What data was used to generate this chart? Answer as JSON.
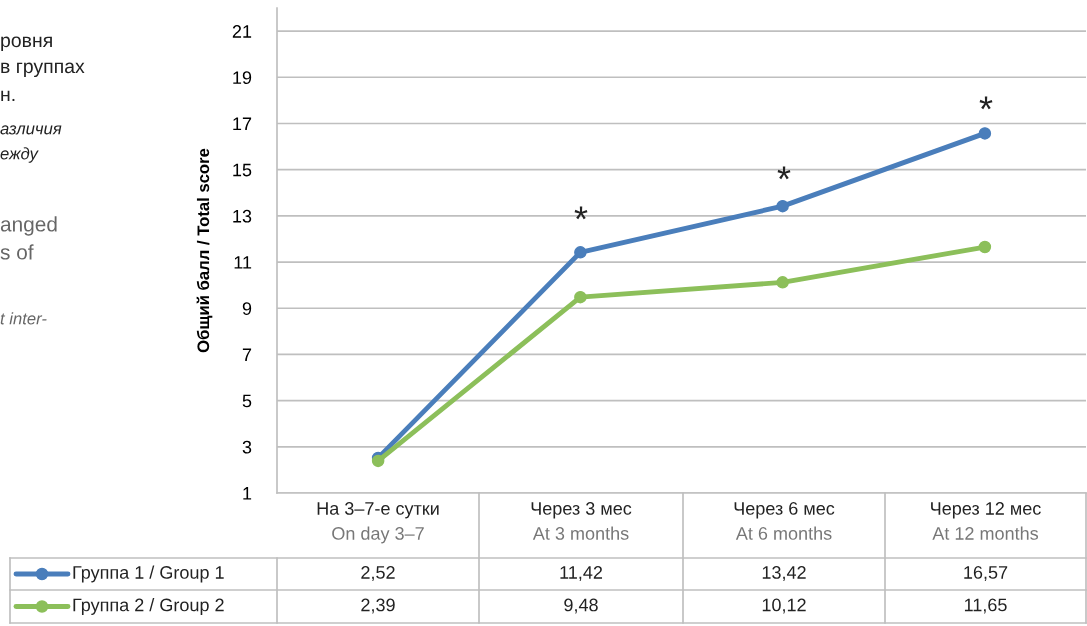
{
  "chart_data": {
    "type": "line",
    "ylabel": "Общий балл / Total score",
    "categories": [
      "На 3–7-е сутки\nOn day 3–7",
      "Через 3 мес\nAt 3 months",
      "Через 6 мес\nAt 6 months",
      "Через 12 мес\nAt 12 months"
    ],
    "series": [
      {
        "name": "Группа 1 / Group 1",
        "color": "#4a7ebb",
        "values": [
          2.52,
          11.42,
          13.42,
          16.57
        ],
        "value_labels": [
          "2,52",
          "11,42",
          "13,42",
          "16,57"
        ]
      },
      {
        "name": "Группа 2 / Group 2",
        "color": "#8cbf5a",
        "values": [
          2.39,
          9.48,
          10.12,
          11.65
        ],
        "value_labels": [
          "2,39",
          "9,48",
          "10,12",
          "11,65"
        ]
      }
    ],
    "ylim": [
      1,
      22
    ],
    "yticks": [
      1,
      3,
      5,
      7,
      9,
      11,
      13,
      15,
      17,
      19,
      21
    ],
    "grid": "y",
    "marker": "circle",
    "line_style": "solid",
    "legend": "bottom left",
    "annotations": [
      "*",
      "*",
      "*",
      "ровня",
      "в группах",
      "н.",
      "азличия",
      "ежду",
      "anged",
      "s of",
      "t inter-"
    ]
  }
}
